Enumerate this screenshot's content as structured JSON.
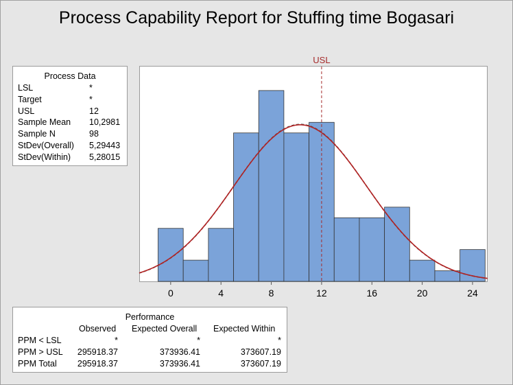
{
  "title": "Process Capability Report for Stuffing time Bogasari",
  "process_data": {
    "header": "Process Data",
    "rows": [
      {
        "label": "LSL",
        "value": "*"
      },
      {
        "label": "Target",
        "value": "*"
      },
      {
        "label": "USL",
        "value": "12"
      },
      {
        "label": "Sample Mean",
        "value": "10,2981"
      },
      {
        "label": "Sample N",
        "value": "98"
      },
      {
        "label": "StDev(Overall)",
        "value": "5,29443"
      },
      {
        "label": "StDev(Within)",
        "value": "5,28015"
      }
    ]
  },
  "performance": {
    "header": "Performance",
    "columns": [
      "Observed",
      "Expected Overall",
      "Expected Within"
    ],
    "rows": [
      {
        "label": "PPM < LSL",
        "values": [
          "*",
          "*",
          "*"
        ]
      },
      {
        "label": "PPM > USL",
        "values": [
          "295918.37",
          "373936.41",
          "373607.19"
        ]
      },
      {
        "label": "PPM Total",
        "values": [
          "295918.37",
          "373936.41",
          "373607.19"
        ]
      }
    ]
  },
  "chart_data": {
    "type": "bar",
    "subtype": "histogram",
    "bin_width": 2,
    "bin_centers": [
      0,
      2,
      4,
      6,
      8,
      10,
      12,
      14,
      16,
      18,
      20,
      22,
      24
    ],
    "counts": [
      5,
      2,
      5,
      14,
      18,
      14,
      15,
      6,
      6,
      7,
      2,
      1,
      3
    ],
    "x_ticks": [
      "0",
      "4",
      "8",
      "12",
      "16",
      "20",
      "24"
    ],
    "x_tick_values": [
      0,
      4,
      8,
      12,
      16,
      20,
      24
    ],
    "xlim": [
      -2.5,
      25.2
    ],
    "ylim": [
      0,
      18
    ],
    "usl": 12,
    "usl_label": "USL",
    "fit": {
      "mean": 10.2981,
      "stdev_overall": 5.29443,
      "stdev_within": 5.28015,
      "sample_n": 98
    },
    "colors": {
      "bar_fill": "#7ba3d9",
      "bar_stroke": "#333333",
      "overall_curve": "#b22222",
      "within_curve": "#444444",
      "usl_line": "#a52a2a"
    }
  }
}
